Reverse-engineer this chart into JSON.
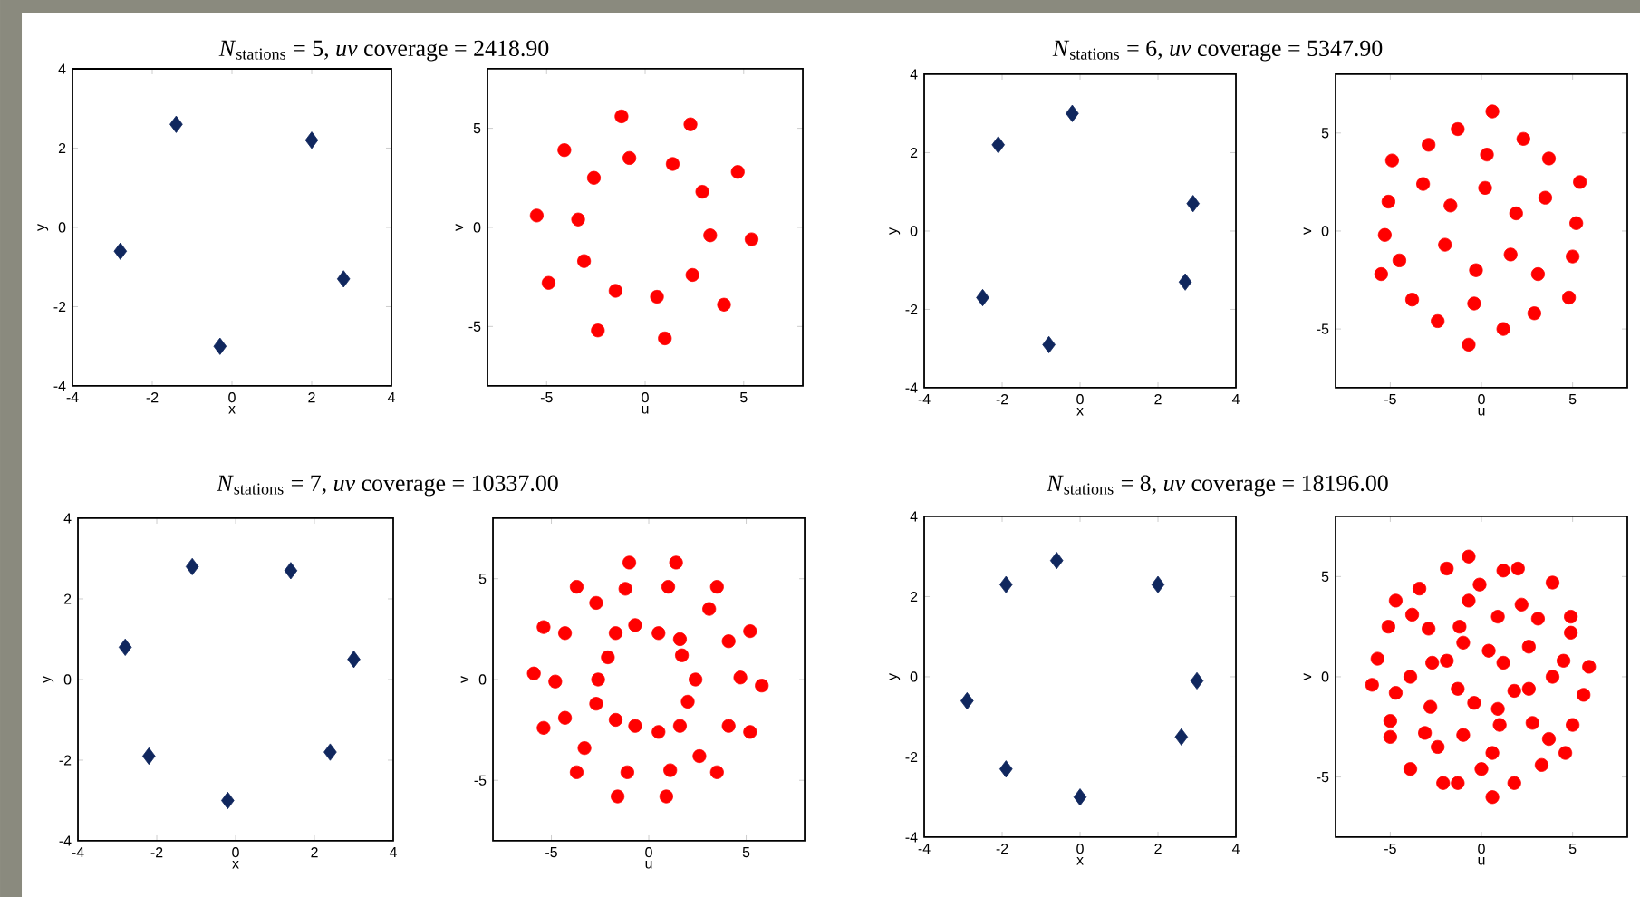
{
  "chart_data": [
    {
      "type": "scatter",
      "title": "*N*$_{stations}$ = 5, *uv* coverage = 2418.90",
      "xlabel": "x",
      "ylabel": "y",
      "xlim": [
        -4,
        4
      ],
      "ylim": [
        -4,
        4
      ],
      "xticks": [
        -4,
        -2,
        0,
        2,
        4
      ],
      "yticks": [
        -4,
        -2,
        0,
        2,
        4
      ],
      "marker": "diamond",
      "color": "#10275e",
      "x": [
        -2.8,
        -1.4,
        2.0,
        2.8,
        -0.3
      ],
      "values": [
        -0.6,
        2.6,
        2.2,
        -1.3,
        -3.0
      ]
    },
    {
      "type": "scatter",
      "xlabel": "u",
      "ylabel": "v",
      "xlim": [
        -8,
        8
      ],
      "ylim": [
        -8,
        8
      ],
      "xticks": [
        -5,
        0,
        5
      ],
      "yticks": [
        -5,
        0,
        5
      ],
      "marker": "circle",
      "color": "#ff0000",
      "x": [
        -1.2,
        2.3,
        -4.1,
        -0.8,
        1.4,
        -2.6,
        4.7,
        2.9,
        -5.5,
        -3.4,
        3.3,
        5.4,
        -3.1,
        -4.9,
        2.4,
        -1.5,
        0.6,
        4.0,
        -2.4,
        1.0
      ],
      "values": [
        5.6,
        5.2,
        3.9,
        3.5,
        3.2,
        2.5,
        2.8,
        1.8,
        0.6,
        0.4,
        -0.4,
        -0.6,
        -1.7,
        -2.8,
        -2.4,
        -3.2,
        -3.5,
        -3.9,
        -5.2,
        -5.6
      ]
    },
    {
      "type": "scatter",
      "title": "*N*$_{stations}$ = 6, *uv* coverage = 5347.90",
      "xlabel": "x",
      "ylabel": "y",
      "xlim": [
        -4,
        4
      ],
      "ylim": [
        -4,
        4
      ],
      "xticks": [
        -4,
        -2,
        0,
        2,
        4
      ],
      "yticks": [
        -4,
        -2,
        0,
        2,
        4
      ],
      "marker": "diamond",
      "color": "#10275e",
      "x": [
        -0.2,
        -2.1,
        2.9,
        2.7,
        -2.5,
        -0.8
      ],
      "values": [
        3.0,
        2.2,
        0.7,
        -1.3,
        -1.7,
        -2.9
      ]
    },
    {
      "type": "scatter",
      "xlabel": "u",
      "ylabel": "v",
      "xlim": [
        -8,
        8
      ],
      "ylim": [
        -8,
        8
      ],
      "xticks": [
        -5,
        0,
        5
      ],
      "yticks": [
        -5,
        0,
        5
      ],
      "marker": "circle",
      "color": "#ff0000",
      "x": [
        0.6,
        -1.3,
        2.3,
        -2.9,
        -4.9,
        0.3,
        3.7,
        -3.2,
        0.2,
        5.4,
        -5.1,
        -1.7,
        3.5,
        1.9,
        5.2,
        -5.3,
        -2.0,
        -4.5,
        1.6,
        5.0,
        -5.5,
        -0.3,
        3.1,
        -3.8,
        -0.4,
        4.8,
        -2.4,
        2.9,
        1.2,
        -0.7
      ],
      "values": [
        6.1,
        5.2,
        4.7,
        4.4,
        3.6,
        3.9,
        3.7,
        2.4,
        2.2,
        2.5,
        1.5,
        1.3,
        1.7,
        0.9,
        0.4,
        -0.2,
        -0.7,
        -1.5,
        -1.2,
        -1.3,
        -2.2,
        -2.0,
        -2.2,
        -3.5,
        -3.7,
        -3.4,
        -4.6,
        -4.2,
        -5.0,
        -5.8
      ]
    },
    {
      "type": "scatter",
      "title": "*N*$_{stations}$ = 7, *uv* coverage = 10337.00",
      "xlabel": "x",
      "ylabel": "y",
      "xlim": [
        -4,
        4
      ],
      "ylim": [
        -4,
        4
      ],
      "xticks": [
        -4,
        -2,
        0,
        2,
        4
      ],
      "yticks": [
        -4,
        -2,
        0,
        2,
        4
      ],
      "marker": "diamond",
      "color": "#10275e",
      "x": [
        -1.1,
        1.4,
        -2.8,
        3.0,
        -2.2,
        2.4,
        -0.2
      ],
      "values": [
        2.8,
        2.7,
        0.8,
        0.5,
        -1.9,
        -1.8,
        -3.0
      ]
    },
    {
      "type": "scatter",
      "xlabel": "u",
      "ylabel": "v",
      "xlim": [
        -8,
        8
      ],
      "ylim": [
        -8,
        8
      ],
      "xticks": [
        -5,
        0,
        5
      ],
      "yticks": [
        -5,
        0,
        5
      ],
      "marker": "circle",
      "color": "#ff0000",
      "x": [
        -1.0,
        1.4,
        -3.7,
        -1.2,
        1.0,
        3.5,
        -2.7,
        3.1,
        -5.4,
        -4.3,
        -1.7,
        -0.7,
        0.5,
        1.6,
        4.1,
        5.2,
        -2.1,
        1.7,
        -5.9,
        -4.8,
        -2.6,
        2.4,
        4.7,
        5.8,
        -2.7,
        2.0,
        -4.3,
        -1.7,
        -0.7,
        0.5,
        1.6,
        4.1,
        -5.4,
        5.2,
        -3.3,
        2.6,
        -3.7,
        -1.1,
        1.1,
        3.5,
        -1.6,
        0.9
      ],
      "values": [
        5.8,
        5.8,
        4.6,
        4.5,
        4.6,
        4.6,
        3.8,
        3.5,
        2.6,
        2.3,
        2.3,
        2.7,
        2.3,
        2.0,
        1.9,
        2.4,
        1.1,
        1.2,
        0.3,
        -0.1,
        0.0,
        0.0,
        0.1,
        -0.3,
        -1.2,
        -1.1,
        -1.9,
        -2.0,
        -2.3,
        -2.6,
        -2.3,
        -2.3,
        -2.4,
        -2.6,
        -3.4,
        -3.8,
        -4.6,
        -4.6,
        -4.5,
        -4.6,
        -5.8,
        -5.8
      ]
    },
    {
      "type": "scatter",
      "title": "*N*$_{stations}$ = 8, *uv* coverage = 18196.00",
      "xlabel": "x",
      "ylabel": "y",
      "xlim": [
        -4,
        4
      ],
      "ylim": [
        -4,
        4
      ],
      "xticks": [
        -4,
        -2,
        0,
        2,
        4
      ],
      "yticks": [
        -4,
        -2,
        0,
        2,
        4
      ],
      "marker": "diamond",
      "color": "#10275e",
      "x": [
        -0.6,
        -1.9,
        2.0,
        3.0,
        -2.9,
        2.6,
        -1.9,
        0.0
      ],
      "values": [
        2.9,
        2.3,
        2.3,
        -0.1,
        -0.6,
        -1.5,
        -2.3,
        -3.0
      ]
    },
    {
      "type": "scatter",
      "xlabel": "u",
      "ylabel": "v",
      "xlim": [
        -8,
        8
      ],
      "ylim": [
        -8,
        8
      ],
      "xticks": [
        -5,
        0,
        5
      ],
      "yticks": [
        -5,
        0,
        5
      ],
      "marker": "circle",
      "color": "#ff0000",
      "x": [
        -0.7,
        -1.9,
        1.2,
        2.0,
        3.9,
        -3.4,
        -0.1,
        -4.7,
        -0.7,
        2.2,
        -3.8,
        0.9,
        3.1,
        4.9,
        -5.1,
        -2.9,
        -1.2,
        4.9,
        -1.0,
        0.4,
        2.6,
        -5.7,
        -2.7,
        -1.9,
        1.2,
        4.5,
        5.9,
        -3.9,
        3.9,
        -6.0,
        -1.3,
        1.8,
        2.6,
        -4.7,
        5.6,
        -0.4,
        -2.8,
        0.9,
        -5.0,
        1.0,
        2.8,
        5.0,
        -5.0,
        -3.1,
        -1.0,
        3.7,
        -2.4,
        0.6,
        4.6,
        3.3,
        0.0,
        -3.9,
        -2.1,
        -1.3,
        1.8,
        0.6
      ],
      "values": [
        6.0,
        5.4,
        5.3,
        5.4,
        4.7,
        4.4,
        4.6,
        3.8,
        3.8,
        3.6,
        3.1,
        3.0,
        2.9,
        3.0,
        2.5,
        2.4,
        2.5,
        2.2,
        1.7,
        1.3,
        1.5,
        0.9,
        0.7,
        0.8,
        0.7,
        0.8,
        0.5,
        0.0,
        0.0,
        -0.4,
        -0.6,
        -0.7,
        -0.6,
        -0.8,
        -0.9,
        -1.3,
        -1.5,
        -1.6,
        -2.2,
        -2.4,
        -2.3,
        -2.4,
        -3.0,
        -2.8,
        -2.9,
        -3.1,
        -3.5,
        -3.8,
        -3.8,
        -4.4,
        -4.6,
        -4.6,
        -5.3,
        -5.3,
        -5.3,
        -6.0
      ]
    }
  ]
}
